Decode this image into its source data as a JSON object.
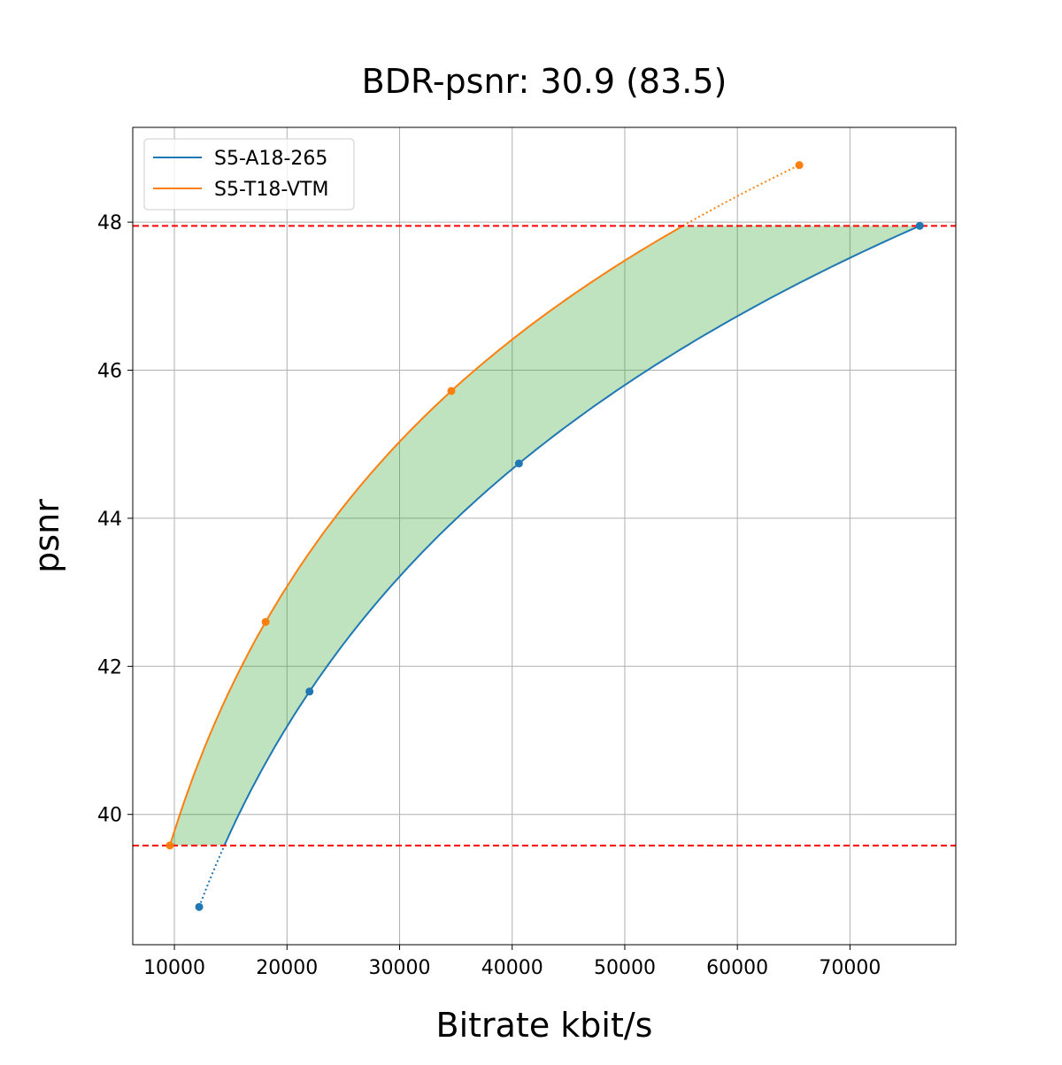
{
  "chart_data": {
    "type": "line",
    "title": "BDR-psnr: 30.9 (83.5)",
    "xlabel": "Bitrate kbit/s",
    "ylabel": "psnr",
    "xlim": [
      6300,
      79400
    ],
    "ylim": [
      38.24,
      49.28
    ],
    "xticks": [
      10000,
      20000,
      30000,
      40000,
      50000,
      60000,
      70000
    ],
    "yticks": [
      40,
      42,
      44,
      46,
      48
    ],
    "grid": true,
    "legend_position": "top-left",
    "series": [
      {
        "name": "S5-A18-265",
        "color": "#1f77b4",
        "x": [
          12200,
          22000,
          40600,
          76200
        ],
        "y": [
          38.75,
          41.66,
          44.74,
          47.95
        ]
      },
      {
        "name": "S5-T18-VTM",
        "color": "#ff7f0e",
        "x": [
          9600,
          18100,
          34600,
          65500
        ],
        "y": [
          39.58,
          42.6,
          45.72,
          48.77
        ]
      }
    ],
    "reference_lines": {
      "y": [
        47.95,
        39.58
      ],
      "color": "#ff0000",
      "style": "dashed"
    },
    "fill_between": {
      "color": "#2ca02c",
      "opacity": 0.3,
      "y_range": [
        39.58,
        47.95
      ]
    }
  }
}
